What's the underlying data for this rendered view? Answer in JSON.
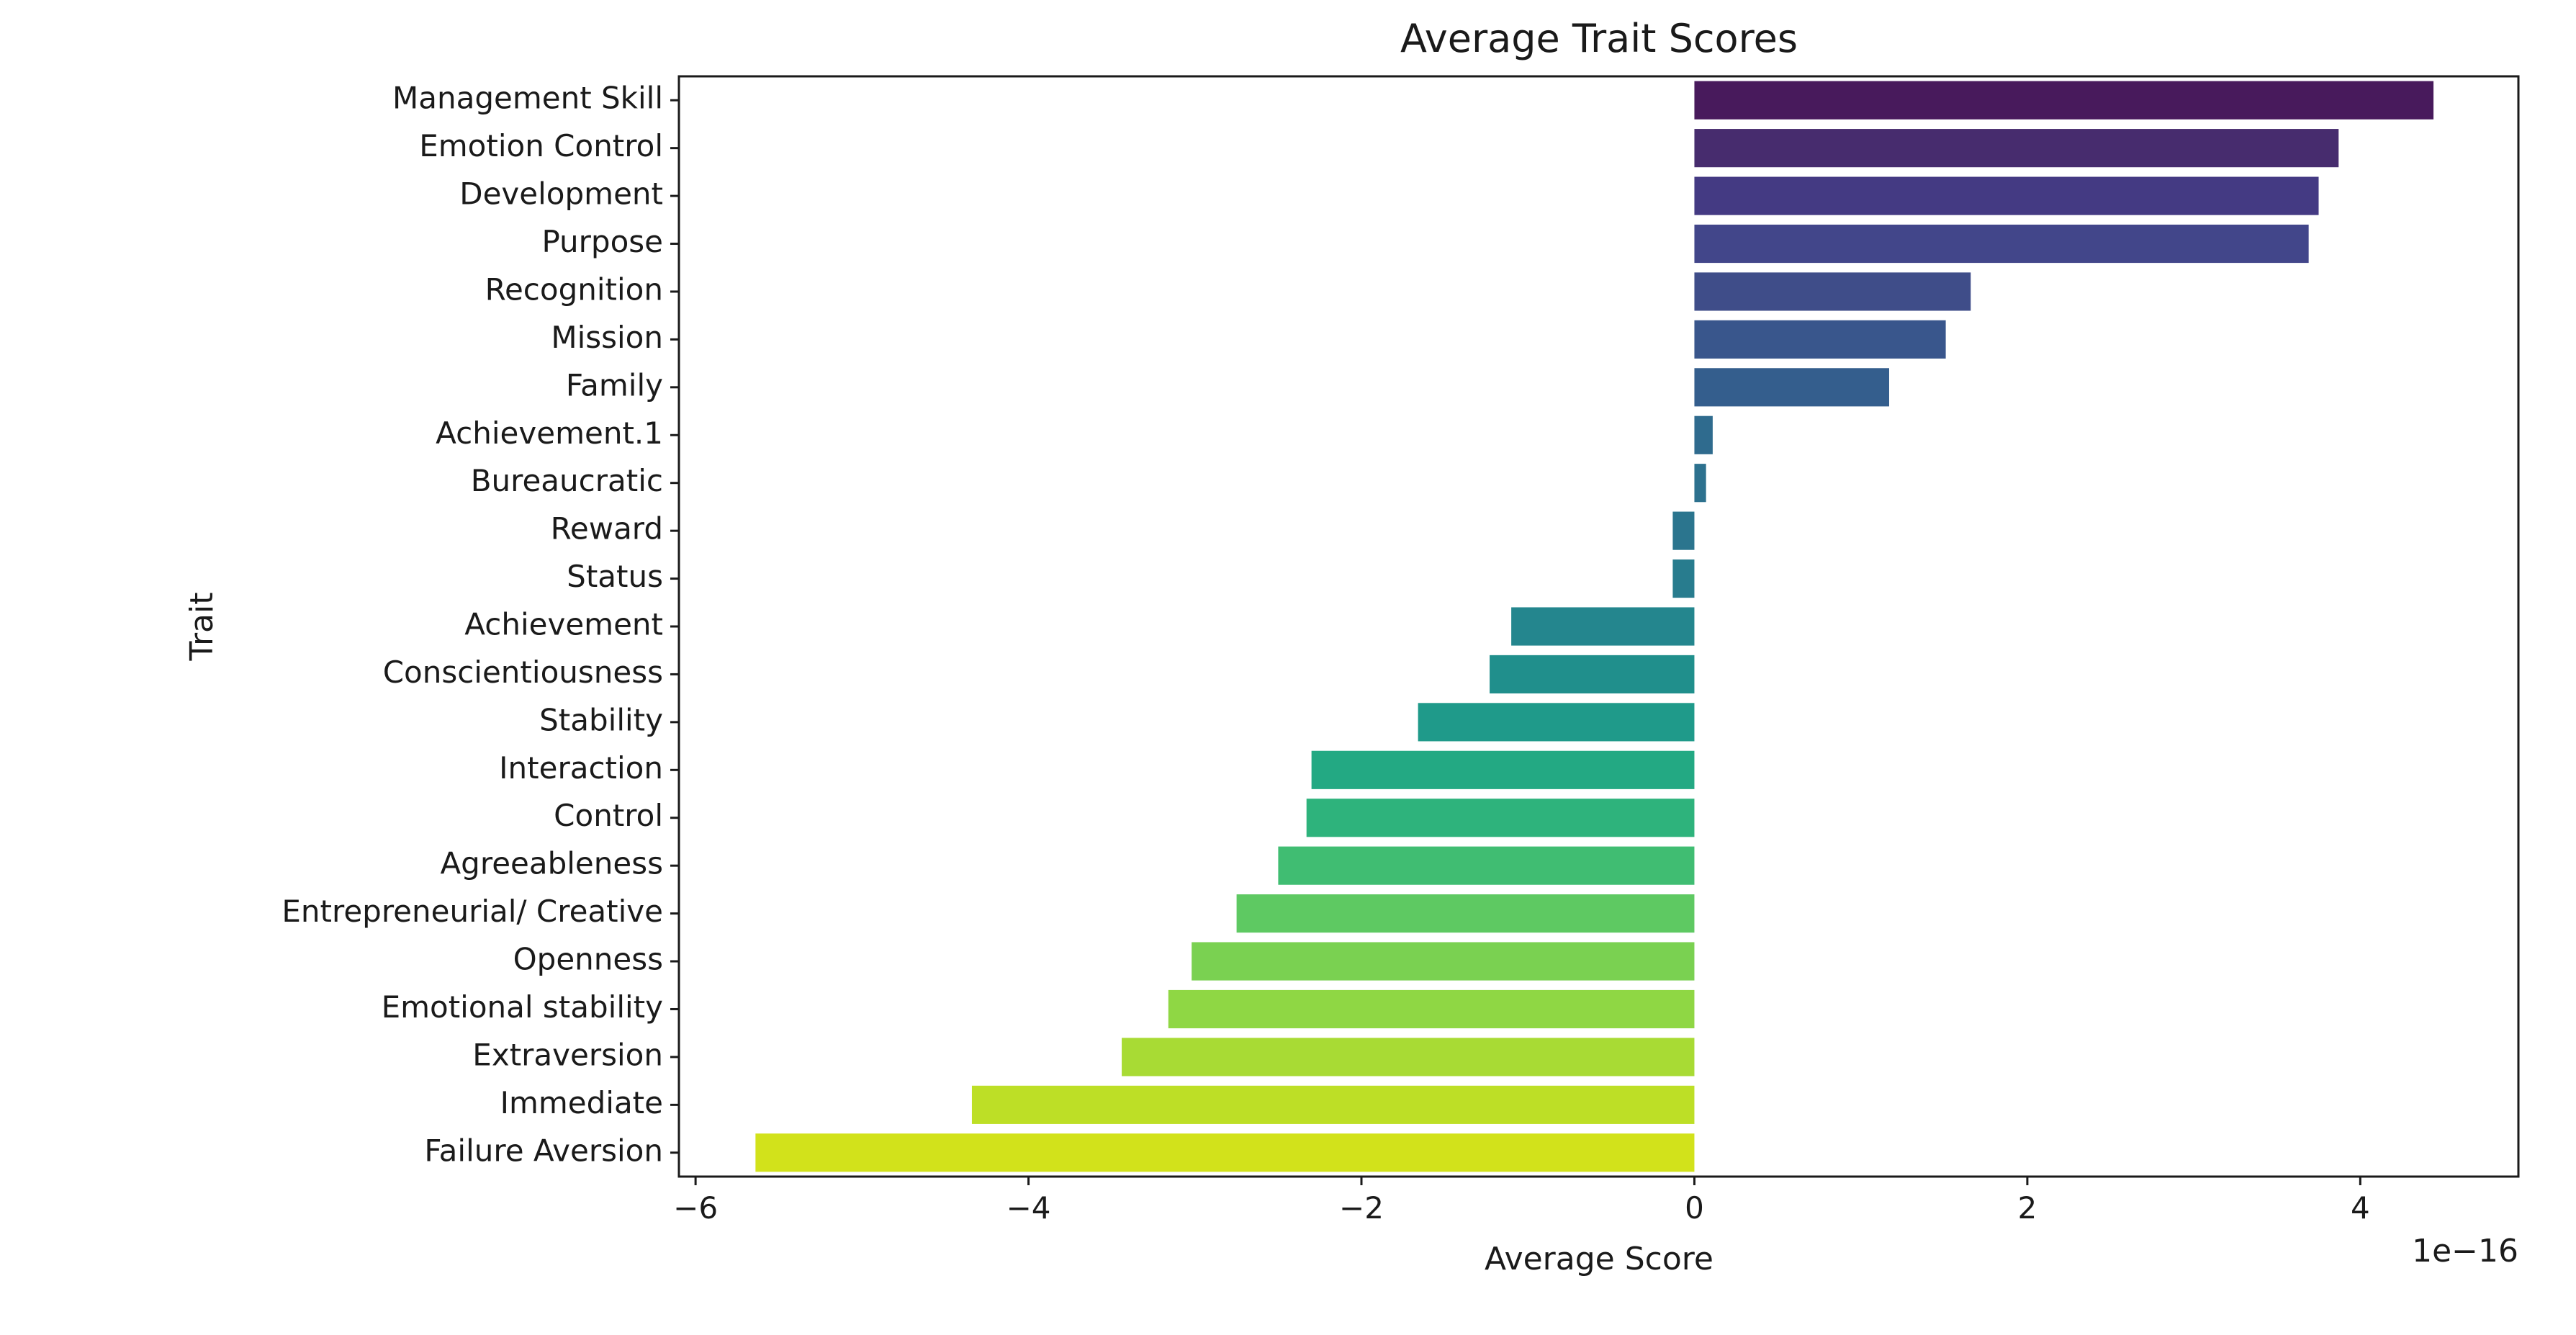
{
  "chart_data": {
    "type": "bar",
    "orientation": "horizontal",
    "title": "Average Trait Scores",
    "xlabel": "Average Score",
    "ylabel": "Trait",
    "x_scale_label": "1e−16",
    "xlim": [
      -6.1,
      4.95
    ],
    "xticks": [
      -6,
      -4,
      -2,
      0,
      2,
      4
    ],
    "xtick_labels": [
      "−6",
      "−4",
      "−2",
      "0",
      "2",
      "4"
    ],
    "grid": false,
    "legend": "none",
    "categories": [
      "Management Skill",
      "Emotion Control",
      "Development",
      "Purpose",
      "Recognition",
      "Mission",
      "Family",
      "Achievement.1",
      "Bureaucratic",
      "Reward",
      "Status",
      "Achievement",
      "Conscientiousness",
      "Stability",
      "Interaction",
      "Control ",
      "Agreeableness",
      "Entrepreneurial/ Creative",
      "Openness",
      "Emotional stability",
      "Extraversion",
      "Immediate",
      "Failure Aversion"
    ],
    "values": [
      4.44,
      3.87,
      3.75,
      3.69,
      1.66,
      1.51,
      1.17,
      0.11,
      0.07,
      -0.13,
      -0.13,
      -1.1,
      -1.23,
      -1.66,
      -2.3,
      -2.33,
      -2.5,
      -2.75,
      -3.02,
      -3.16,
      -3.44,
      -4.34,
      -5.64
    ],
    "colors": [
      "#481a5c",
      "#472c6e",
      "#443a83",
      "#42468a",
      "#3f4d89",
      "#39568c",
      "#345e8d",
      "#2f6b8e",
      "#2d718e",
      "#2b758e",
      "#287c8e",
      "#24868e",
      "#208f8c",
      "#1f9a8a",
      "#23a983",
      "#2eb37c",
      "#40bd72",
      "#5ec962",
      "#7ad151",
      "#8fd744",
      "#a8db34",
      "#bddf26",
      "#d2e21b"
    ]
  }
}
